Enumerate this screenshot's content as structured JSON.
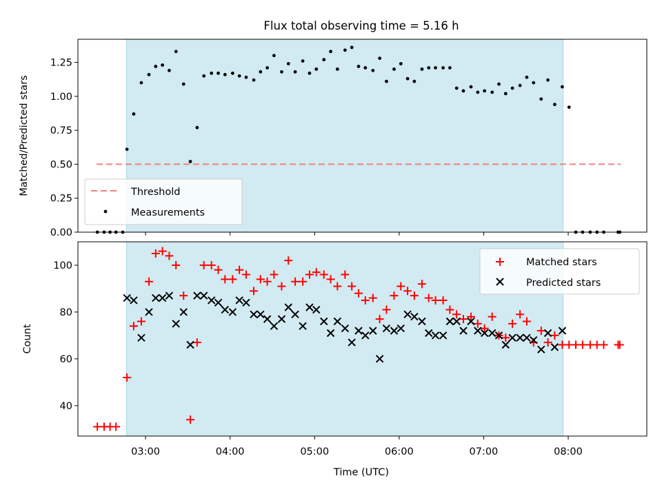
{
  "chart_data": [
    {
      "type": "scatter",
      "title": "Flux total observing time = 5.16 h",
      "ylabel": "Matched/Predicted stars",
      "ylim": [
        0,
        1.42
      ],
      "yticks": [
        0.0,
        0.25,
        0.5,
        0.75,
        1.0,
        1.25
      ],
      "ytick_labels": [
        "0.00",
        "0.25",
        "0.50",
        "0.75",
        "1.00",
        "1.25"
      ],
      "xlim": [
        2.2,
        8.93
      ],
      "xticks": [
        3,
        4,
        5,
        6,
        7,
        8
      ],
      "shaded_span": [
        2.775,
        7.94
      ],
      "shade_color": "#add8e6",
      "legend": {
        "position": "lower-left",
        "entries": [
          "Threshold",
          "Measurements"
        ]
      },
      "threshold": {
        "name": "Threshold",
        "y": 0.5,
        "x": [
          2.42,
          8.62
        ],
        "color": "#f08080"
      },
      "series": [
        {
          "name": "Measurements",
          "color": "#000000",
          "x": [
            2.43,
            2.51,
            2.58,
            2.65,
            2.73,
            2.78,
            2.86,
            2.95,
            3.04,
            3.12,
            3.2,
            3.28,
            3.36,
            3.45,
            3.53,
            3.61,
            3.69,
            3.78,
            3.86,
            3.94,
            4.03,
            4.11,
            4.19,
            4.28,
            4.36,
            4.44,
            4.52,
            4.61,
            4.69,
            4.77,
            4.86,
            4.94,
            5.02,
            5.11,
            5.19,
            5.27,
            5.36,
            5.44,
            5.52,
            5.6,
            5.69,
            5.77,
            5.85,
            5.94,
            6.02,
            6.1,
            6.18,
            6.27,
            6.35,
            6.43,
            6.52,
            6.6,
            6.68,
            6.76,
            6.85,
            6.93,
            7.01,
            7.1,
            7.18,
            7.26,
            7.34,
            7.43,
            7.51,
            7.59,
            7.68,
            7.76,
            7.84,
            7.93,
            8.01,
            8.09,
            8.17,
            8.26,
            8.34,
            8.42,
            8.59,
            8.61
          ],
          "y": [
            0.0,
            0.0,
            0.0,
            0.0,
            0.0,
            0.61,
            0.87,
            1.1,
            1.16,
            1.22,
            1.23,
            1.19,
            1.33,
            1.09,
            0.52,
            0.77,
            1.15,
            1.17,
            1.17,
            1.16,
            1.17,
            1.15,
            1.14,
            1.12,
            1.18,
            1.21,
            1.3,
            1.18,
            1.24,
            1.18,
            1.26,
            1.17,
            1.2,
            1.27,
            1.33,
            1.2,
            1.34,
            1.36,
            1.22,
            1.21,
            1.19,
            1.28,
            1.11,
            1.2,
            1.24,
            1.13,
            1.11,
            1.2,
            1.21,
            1.21,
            1.21,
            1.21,
            1.06,
            1.04,
            1.07,
            1.03,
            1.04,
            1.03,
            1.09,
            1.02,
            1.06,
            1.08,
            1.14,
            1.1,
            0.98,
            1.12,
            0.94,
            1.07,
            0.92,
            0.0,
            0.0,
            0.0,
            0.0,
            0.0,
            0.0,
            0.0
          ]
        }
      ]
    },
    {
      "type": "scatter",
      "xlabel": "Time (UTC)",
      "ylabel": "Count",
      "ylim": [
        27,
        110
      ],
      "yticks": [
        40,
        60,
        80,
        100
      ],
      "ytick_labels": [
        "40",
        "60",
        "80",
        "100"
      ],
      "xlim": [
        2.2,
        8.93
      ],
      "xticks": [
        3,
        4,
        5,
        6,
        7,
        8
      ],
      "xtick_labels": [
        "03:00",
        "04:00",
        "05:00",
        "06:00",
        "07:00",
        "08:00"
      ],
      "shaded_span": [
        2.775,
        7.94
      ],
      "shade_color": "#add8e6",
      "legend": {
        "position": "top-right",
        "entries": [
          "Matched stars",
          "Predicted stars"
        ]
      },
      "series": [
        {
          "name": "Matched stars",
          "marker": "plus",
          "color": "#ff0000",
          "x": [
            2.43,
            2.51,
            2.58,
            2.65,
            2.78,
            2.86,
            2.95,
            3.04,
            3.12,
            3.2,
            3.28,
            3.36,
            3.45,
            3.53,
            3.61,
            3.69,
            3.78,
            3.86,
            3.94,
            4.03,
            4.11,
            4.19,
            4.28,
            4.36,
            4.44,
            4.52,
            4.61,
            4.69,
            4.77,
            4.86,
            4.94,
            5.02,
            5.11,
            5.19,
            5.27,
            5.36,
            5.44,
            5.52,
            5.6,
            5.69,
            5.77,
            5.85,
            5.94,
            6.02,
            6.1,
            6.18,
            6.27,
            6.35,
            6.43,
            6.52,
            6.6,
            6.68,
            6.76,
            6.85,
            6.93,
            7.01,
            7.1,
            7.18,
            7.26,
            7.34,
            7.43,
            7.51,
            7.59,
            7.68,
            7.76,
            7.84,
            7.93,
            8.01,
            8.09,
            8.17,
            8.26,
            8.34,
            8.42,
            8.59,
            8.61
          ],
          "y": [
            31,
            31,
            31,
            31,
            52,
            74,
            76,
            93,
            105,
            106,
            104,
            100,
            87,
            34,
            67,
            100,
            100,
            98,
            94,
            94,
            98,
            96,
            89,
            94,
            93,
            96,
            91,
            102,
            93,
            93,
            96,
            97,
            96,
            94,
            91,
            96,
            91,
            88,
            85,
            86,
            77,
            81,
            87,
            91,
            89,
            87,
            92,
            86,
            85,
            85,
            81,
            79,
            77,
            78,
            75,
            73,
            78,
            70,
            69,
            75,
            79,
            76,
            67,
            72,
            67,
            70,
            66,
            66,
            66,
            66,
            66,
            66,
            66,
            66,
            66
          ]
        },
        {
          "name": "Predicted stars",
          "marker": "x",
          "color": "#000000",
          "x": [
            2.78,
            2.86,
            2.95,
            3.04,
            3.12,
            3.2,
            3.28,
            3.36,
            3.45,
            3.53,
            3.61,
            3.69,
            3.78,
            3.86,
            3.94,
            4.03,
            4.11,
            4.19,
            4.28,
            4.36,
            4.44,
            4.52,
            4.61,
            4.69,
            4.77,
            4.86,
            4.94,
            5.02,
            5.11,
            5.19,
            5.27,
            5.36,
            5.44,
            5.52,
            5.6,
            5.69,
            5.77,
            5.85,
            5.94,
            6.02,
            6.1,
            6.18,
            6.27,
            6.35,
            6.43,
            6.52,
            6.6,
            6.68,
            6.76,
            6.85,
            6.93,
            7.01,
            7.1,
            7.18,
            7.26,
            7.34,
            7.43,
            7.51,
            7.59,
            7.68,
            7.76,
            7.84,
            7.93
          ],
          "y": [
            86,
            85,
            69,
            80,
            86,
            86,
            87,
            75,
            80,
            66,
            87,
            87,
            85,
            84,
            81,
            80,
            85,
            84,
            79,
            79,
            77,
            74,
            77,
            82,
            79,
            74,
            82,
            81,
            76,
            71,
            76,
            73,
            67,
            72,
            70,
            72,
            60,
            73,
            72,
            73,
            79,
            78,
            76,
            71,
            70,
            70,
            76,
            76,
            72,
            76,
            72,
            71,
            71,
            70,
            66,
            69,
            69,
            69,
            68,
            64,
            71,
            65,
            72
          ]
        }
      ]
    }
  ]
}
